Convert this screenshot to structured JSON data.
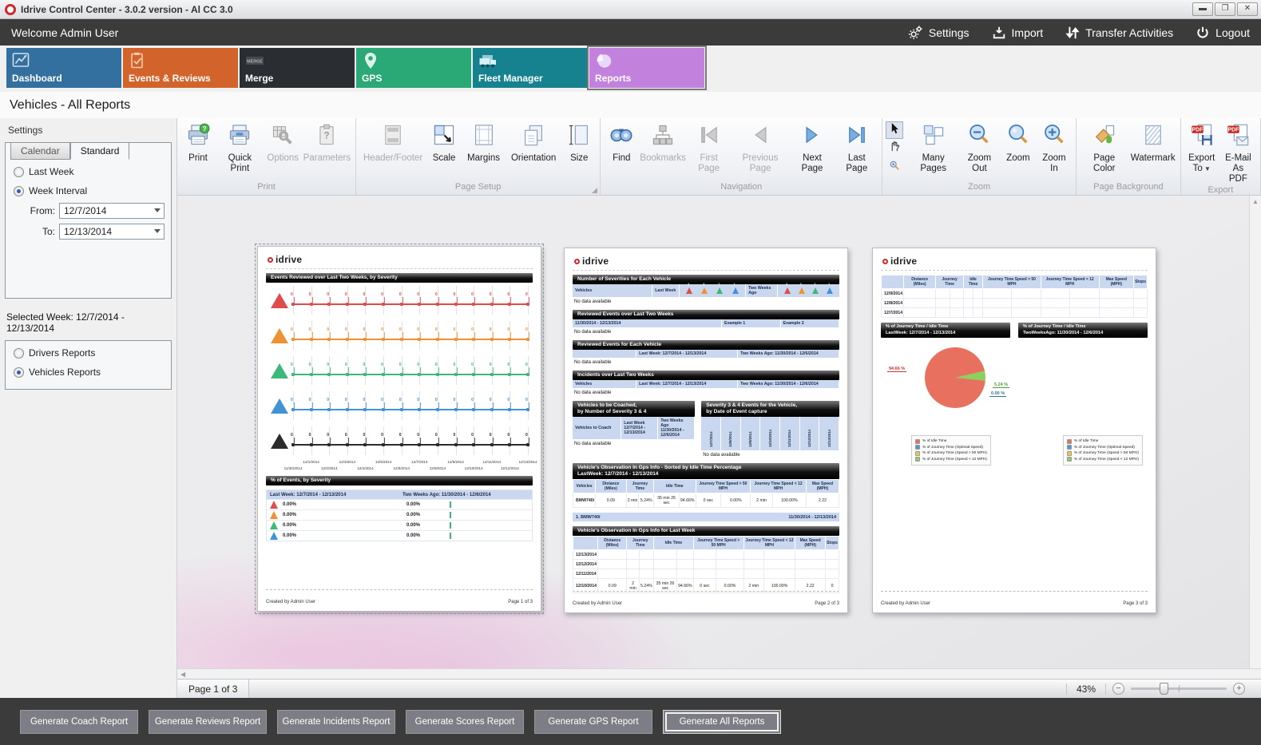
{
  "window": {
    "title": "Idrive Control Center - 3.0.2 version - Al CC 3.0",
    "controls": [
      "minimize",
      "maximize",
      "close"
    ]
  },
  "header": {
    "welcome": "Welcome Admin User",
    "actions": [
      {
        "label": "Settings",
        "icon": "gears-icon"
      },
      {
        "label": "Import",
        "icon": "import-icon"
      },
      {
        "label": "Transfer Activities",
        "icon": "transfer-icon"
      },
      {
        "label": "Logout",
        "icon": "power-icon"
      }
    ]
  },
  "tabs": [
    {
      "label": "Dashboard",
      "color": "#34709f",
      "icon": "dashboard-icon",
      "selected": false
    },
    {
      "label": "Events & Reviews",
      "color": "#d2632b",
      "icon": "events-icon",
      "selected": false
    },
    {
      "label": "Merge",
      "color": "#2a2e32",
      "icon": "merge-icon",
      "selected": false
    },
    {
      "label": "GPS",
      "color": "#2aa876",
      "icon": "gps-icon",
      "selected": false
    },
    {
      "label": "Fleet Manager",
      "color": "#17828f",
      "icon": "fleet-icon",
      "selected": false
    },
    {
      "label": "Reports",
      "color": "#c181dc",
      "icon": "reports-icon",
      "selected": true
    }
  ],
  "page_title": "Vehicles - All Reports",
  "sidebar": {
    "panel_title": "Settings",
    "tabs": [
      {
        "label": "Calendar",
        "selected": false
      },
      {
        "label": "Standard",
        "selected": true
      }
    ],
    "radios": [
      {
        "label": "Last Week",
        "checked": false
      },
      {
        "label": "Week Interval",
        "checked": true
      }
    ],
    "from_label": "From:",
    "from_value": "12/7/2014",
    "to_label": "To:",
    "to_value": "12/13/2014",
    "selected_week": "Selected Week: 12/7/2014 - 12/13/2014",
    "report_radios": [
      {
        "label": "Drivers Reports",
        "checked": false
      },
      {
        "label": "Vehicles Reports",
        "checked": true
      }
    ]
  },
  "ribbon": {
    "groups": [
      {
        "label": "Print",
        "buttons": [
          {
            "label": "Print",
            "icon": "print-icon",
            "disabled": false
          },
          {
            "label": "Quick Print",
            "icon": "quick-print-icon",
            "disabled": false
          },
          {
            "label": "Options",
            "icon": "options-icon",
            "disabled": true
          },
          {
            "label": "Parameters",
            "icon": "parameters-icon",
            "disabled": true
          }
        ]
      },
      {
        "label": "Page Setup",
        "launcher": true,
        "buttons": [
          {
            "label": "Header/Footer",
            "icon": "header-footer-icon",
            "disabled": true
          },
          {
            "label": "Scale",
            "icon": "scale-icon",
            "disabled": false
          },
          {
            "label": "Margins",
            "icon": "margins-icon",
            "disabled": false
          },
          {
            "label": "Orientation",
            "icon": "orientation-icon",
            "disabled": false
          },
          {
            "label": "Size",
            "icon": "size-icon",
            "disabled": false
          }
        ]
      },
      {
        "label": "Navigation",
        "buttons": [
          {
            "label": "Find",
            "icon": "find-icon",
            "disabled": false
          },
          {
            "label": "Bookmarks",
            "icon": "bookmarks-icon",
            "disabled": true
          },
          {
            "label": "First Page",
            "icon": "first-page-icon",
            "disabled": true
          },
          {
            "label": "Previous Page",
            "icon": "previous-page-icon",
            "disabled": true
          },
          {
            "label": "Next Page",
            "icon": "next-page-icon",
            "disabled": false
          },
          {
            "label": "Last Page",
            "icon": "last-page-icon",
            "disabled": false
          }
        ]
      },
      {
        "label": "Zoom",
        "tools": [
          {
            "name": "pointer-tool",
            "icon": "pointer-icon",
            "selected": true
          },
          {
            "name": "hand-tool",
            "icon": "hand-icon",
            "selected": false
          },
          {
            "name": "magnifier-tool",
            "icon": "mini-magnifier-icon",
            "selected": false
          }
        ],
        "buttons": [
          {
            "label": "Many Pages",
            "icon": "many-pages-icon",
            "disabled": false
          },
          {
            "label": "Zoom Out",
            "icon": "zoom-out-icon",
            "disabled": false
          },
          {
            "label": "Zoom",
            "icon": "zoom-icon",
            "disabled": false
          },
          {
            "label": "Zoom In",
            "icon": "zoom-in-icon",
            "disabled": false
          }
        ]
      },
      {
        "label": "Page Background",
        "buttons": [
          {
            "label": "Page Color",
            "icon": "page-color-icon",
            "disabled": false
          },
          {
            "label": "Watermark",
            "icon": "watermark-icon",
            "disabled": false
          }
        ]
      },
      {
        "label": "Export",
        "buttons": [
          {
            "label": "Export\nTo",
            "icon": "export-to-icon",
            "disabled": false,
            "dropdown": true
          },
          {
            "label": "E-Mail\nAs PDF",
            "icon": "email-pdf-icon",
            "disabled": false
          }
        ]
      }
    ]
  },
  "statusbar": {
    "page_label": "Page 1 of 3",
    "zoom_percent": "43%"
  },
  "footer_buttons": [
    {
      "label": "Generate Coach Report",
      "focused": false
    },
    {
      "label": "Generate Reviews Report",
      "focused": false
    },
    {
      "label": "Generate Incidents Report",
      "focused": false
    },
    {
      "label": "Generate Scores Report",
      "focused": false
    },
    {
      "label": "Generate GPS Report",
      "focused": false
    },
    {
      "label": "Generate All Reports",
      "focused": true
    }
  ],
  "severity_colors": {
    "s4": "#e04b4b",
    "s3": "#f09035",
    "s2": "#3cb878",
    "s1": "#4193d6",
    "total": "#2b2b2b"
  },
  "preview": {
    "logo_text": "idrive",
    "page1": {
      "section1_title": "Events Reviewed over Last Two Weeks, by Severity",
      "timeline_rows": [
        {
          "badge": "4",
          "key": "s4"
        },
        {
          "badge": "3",
          "key": "s3"
        },
        {
          "badge": "2",
          "key": "s2"
        },
        {
          "badge": "1",
          "key": "s1"
        },
        {
          "badge": "Total",
          "key": "total"
        }
      ],
      "dates": [
        "11/30/2014",
        "12/1/2014",
        "12/2/2014",
        "12/3/2014",
        "12/4/2014",
        "12/5/2014",
        "12/6/2014",
        "12/7/2014",
        "12/8/2014",
        "12/9/2014",
        "12/10/2014",
        "12/11/2014",
        "12/12/2014",
        "12/13/2014"
      ],
      "section2_title": "% of Events, by Severity",
      "events_table": {
        "col_last_week": "Last Week: 12/7/2014 - 12/13/2014",
        "col_two_weeks": "Two Weeks Ago: 11/30/2014 - 12/6/2014",
        "rows": [
          {
            "key": "s4",
            "last_week": "0.00%",
            "two_weeks": "0.00%"
          },
          {
            "key": "s3",
            "last_week": "0.00%",
            "two_weeks": "0.00%"
          },
          {
            "key": "s2",
            "last_week": "0.00%",
            "two_weeks": "0.00%"
          },
          {
            "key": "s1",
            "last_week": "0.00%",
            "two_weeks": "0.00%"
          }
        ]
      },
      "footer_left": "Created by Admin User",
      "footer_right": "Page 1 of 3"
    },
    "page2": {
      "sections": [
        {
          "kind": "triangles",
          "title": "Number of Severities for Each Vehicle",
          "left": "Vehicles",
          "mid": "Last Week",
          "right": "Two Weeks Ago",
          "severities": [
            "4",
            "3",
            "2",
            "1"
          ],
          "nodata": "No data available"
        },
        {
          "kind": "cols",
          "title": "Reviewed Events over Last Two Weeks",
          "cols": [
            "11/30/2014 - 12/13/2014",
            "Example 1",
            "Example 2"
          ],
          "widths": [
            56,
            22,
            22
          ],
          "nodata": "No data available"
        },
        {
          "kind": "cols",
          "title": "Reviewed Events for Each Vehicle",
          "cols": [
            "",
            "Last Week: 12/7/2014 - 12/13/2014",
            "Two Weeks Ago: 11/30/2014 - 12/6/2014"
          ],
          "widths": [
            24,
            38,
            38
          ],
          "nodata": "No data available"
        },
        {
          "kind": "cols",
          "title": "Incidents over Last Two Weeks",
          "cols": [
            "Vehicles",
            "Last Week: 12/7/2014 - 12/13/2014",
            "Two Weeks Ago: 11/30/2014 - 12/6/2014"
          ],
          "widths": [
            24,
            38,
            38
          ],
          "nodata": "No data available"
        },
        {
          "kind": "pair",
          "left": {
            "title": "Vehicles to be Coached,\nby Number of Severity 3 & 4",
            "cols": [
              "Vehicles to Coach",
              "Last Week\n12/7/2014 -\n12/13/2014",
              "Two Weeks Ago\n11/30/2014 -\n12/6/2014"
            ],
            "widths": [
              40,
              30,
              30
            ],
            "nodata": "No data available"
          },
          "right": {
            "title": "Severity 3 & 4 Events for the Vehicle,\nby Date of Event capture",
            "dates": [
              "12/7/2014",
              "12/8/2014",
              "12/9/2014",
              "12/10/2014",
              "12/11/2014",
              "12/12/2014",
              "12/13/2014"
            ],
            "nodata": "No data available"
          }
        },
        {
          "kind": "gps",
          "title": "Vehicle's Observation In Gps Info - Sorted by Idle Time Percentage\nLastWeek: 12/7/2014 - 12/13/2014",
          "headers": [
            {
              "t": "Vehicles",
              "span": 1
            },
            {
              "t": "Distance (Miles)",
              "span": 1
            },
            {
              "t": "Journey Time",
              "span": 2
            },
            {
              "t": "Idle Time",
              "span": 2
            },
            {
              "t": "Journey Time Speed > 50 MPH",
              "span": 2
            },
            {
              "t": "Journey Time Speed < 12 MPH",
              "span": 2
            },
            {
              "t": "Max Speed (MPH)",
              "span": 1
            }
          ],
          "rows": [
            [
              "BMW740i",
              "0.09",
              "2 min",
              "5.24%",
              "35 min 26 sec",
              "94.66%",
              "0 sec",
              "0.00%",
              "2 min",
              "100.00%",
              "2.22"
            ]
          ]
        },
        {
          "kind": "band",
          "left": "1. BMW740i",
          "right": "11/30/2014 - 12/13/2014"
        },
        {
          "kind": "gps",
          "title": "Vehicle's Observation In Gps Info for Last Week",
          "headers": [
            {
              "t": "",
              "span": 1
            },
            {
              "t": "Distance (Miles)",
              "span": 1
            },
            {
              "t": "Journey Time",
              "span": 2
            },
            {
              "t": "Idle Time",
              "span": 2
            },
            {
              "t": "Journey Time Speed > 50 MPH",
              "span": 2
            },
            {
              "t": "Journey Time Speed < 12 MPH",
              "span": 2
            },
            {
              "t": "Max Speed (MPH)",
              "span": 1
            },
            {
              "t": "Stops",
              "span": 1
            }
          ],
          "rows": [
            [
              "12/13/2014",
              "",
              "",
              "",
              "",
              "",
              "",
              "",
              "",
              "",
              "",
              ""
            ],
            [
              "12/12/2014",
              "",
              "",
              "",
              "",
              "",
              "",
              "",
              "",
              "",
              "",
              ""
            ],
            [
              "12/11/2014",
              "",
              "",
              "",
              "",
              "",
              "",
              "",
              "",
              "",
              "",
              ""
            ],
            [
              "12/10/2014",
              "0.09",
              "2 min",
              "5.24%",
              "35 min 26 sec",
              "94.66%",
              "0 sec",
              "0.00%",
              "2 min",
              "100.00%",
              "2.22",
              "0"
            ]
          ]
        }
      ],
      "footer_left": "Created by Admin User",
      "footer_right": "Page 2 of 3"
    },
    "page3": {
      "table": {
        "headers": [
          {
            "t": "",
            "span": 1
          },
          {
            "t": "Distance (Miles)",
            "span": 1
          },
          {
            "t": "Journey Time",
            "span": 2
          },
          {
            "t": "Idle Time",
            "span": 2
          },
          {
            "t": "Journey Time Speed > 50 MPH",
            "span": 2
          },
          {
            "t": "Journey Time Speed < 12 MPH",
            "span": 2
          },
          {
            "t": "Max Speed (MPH)",
            "span": 1
          },
          {
            "t": "Stops",
            "span": 1
          }
        ],
        "rows": [
          [
            "12/9/2014",
            "",
            "",
            "",
            "",
            "",
            "",
            "",
            "",
            "",
            "",
            ""
          ],
          [
            "12/8/2014",
            "",
            "",
            "",
            "",
            "",
            "",
            "",
            "",
            "",
            "",
            ""
          ],
          [
            "12/7/2014",
            "",
            "",
            "",
            "",
            "",
            "",
            "",
            "",
            "",
            "",
            ""
          ]
        ]
      },
      "bar_left": "% of Journey Time / Idle Time\nLastWeek: 12/7/2014 - 12/13/2014",
      "bar_right": "% of Journey Time / Idle Time\nTwoWeeksAgo: 11/30/2014 - 12/6/2014",
      "pie_labels": [
        {
          "text": "94.66 %",
          "color": "#cc3333"
        },
        {
          "text": "5.24 %",
          "color": "#4e9e3c"
        },
        {
          "text": "0.00 %",
          "color": "#3c6ea5"
        }
      ],
      "legend_items": [
        {
          "label": "% of Idle Time",
          "color": "#e8705f"
        },
        {
          "label": "% of Journey Time (Optimal Speed)",
          "color": "#4f94d6"
        },
        {
          "label": "% of Journey Time (Speed > 50 MPH)",
          "color": "#e8c84f"
        },
        {
          "label": "% of Journey Time (Speed < 12 MPH)",
          "color": "#8ed060"
        }
      ],
      "footer_left": "Created by Admin User",
      "footer_right": "Page 3 of 3"
    }
  },
  "chart_data": [
    {
      "type": "line",
      "title": "Events Reviewed over Last Two Weeks, by Severity",
      "x": [
        "11/30/2014",
        "12/1/2014",
        "12/2/2014",
        "12/3/2014",
        "12/4/2014",
        "12/5/2014",
        "12/6/2014",
        "12/7/2014",
        "12/8/2014",
        "12/9/2014",
        "12/10/2014",
        "12/11/2014",
        "12/12/2014",
        "12/13/2014"
      ],
      "series": [
        {
          "name": "Severity 4",
          "values": [
            0,
            0,
            0,
            0,
            0,
            0,
            0,
            0,
            0,
            0,
            0,
            0,
            0,
            0
          ]
        },
        {
          "name": "Severity 3",
          "values": [
            0,
            0,
            0,
            0,
            0,
            0,
            0,
            0,
            0,
            0,
            0,
            0,
            0,
            0
          ]
        },
        {
          "name": "Severity 2",
          "values": [
            0,
            0,
            0,
            0,
            0,
            0,
            0,
            0,
            0,
            0,
            0,
            0,
            0,
            0
          ]
        },
        {
          "name": "Severity 1",
          "values": [
            0,
            0,
            0,
            0,
            0,
            0,
            0,
            0,
            0,
            0,
            0,
            0,
            0,
            0
          ]
        },
        {
          "name": "Total",
          "values": [
            0,
            0,
            0,
            0,
            0,
            0,
            0,
            0,
            0,
            0,
            0,
            0,
            0,
            0
          ]
        }
      ],
      "ylabel": "",
      "xlabel": "",
      "grid": true
    },
    {
      "type": "pie",
      "title": "% of Journey Time / Idle Time LastWeek: 12/7/2014 - 12/13/2014",
      "labels": [
        "% of Idle Time",
        "% of Journey Time (Optimal Speed)",
        "% of Journey Time (Speed > 50 MPH)",
        "% of Journey Time (Speed < 12 MPH)"
      ],
      "values": [
        94.66,
        0.0,
        0.0,
        5.24
      ],
      "colors": [
        "#e8705f",
        "#4f94d6",
        "#e8c84f",
        "#8ed060"
      ],
      "legend_position": "bottom"
    }
  ]
}
